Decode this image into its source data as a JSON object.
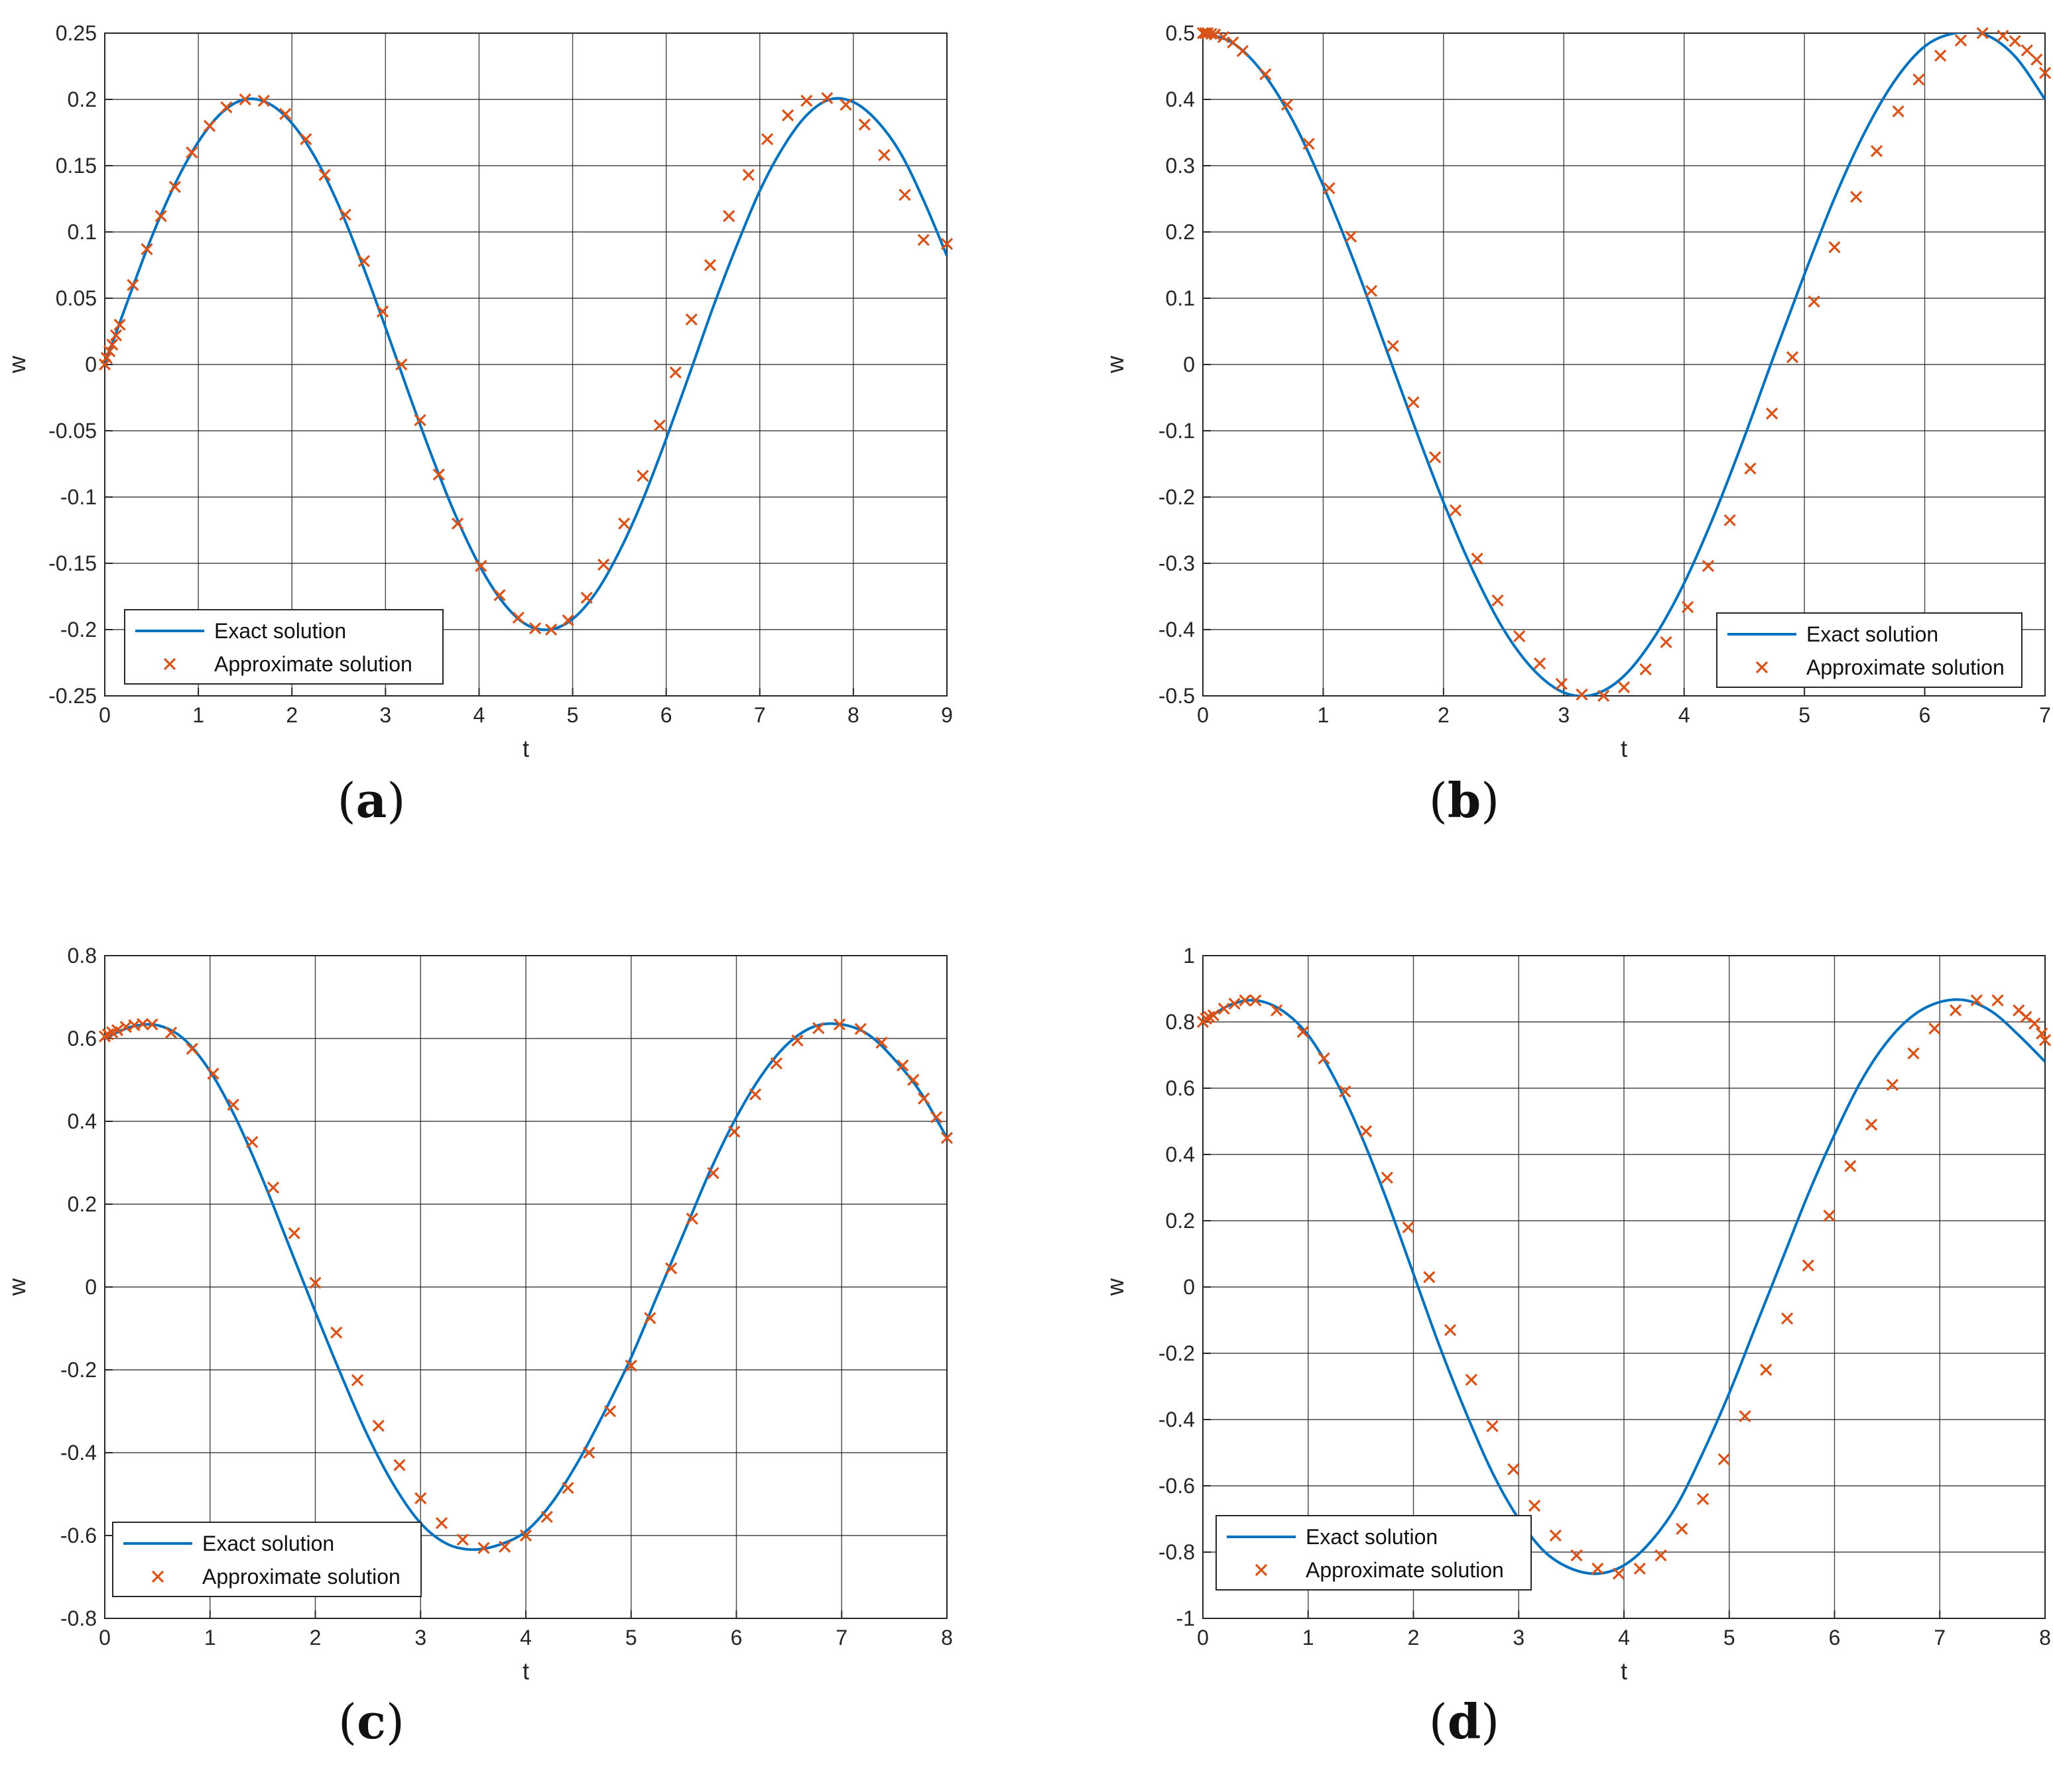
{
  "colors": {
    "exact": "#0072BD",
    "approx": "#D95319",
    "grid": "#262626",
    "axis": "#262626"
  },
  "chart_data": [
    {
      "id": "a",
      "type": "line",
      "caption_letter": "a",
      "xlabel": "t",
      "ylabel": "w",
      "xlim": [
        0,
        9
      ],
      "ylim": [
        -0.25,
        0.25
      ],
      "xticks": [
        0,
        1,
        2,
        3,
        4,
        5,
        6,
        7,
        8,
        9
      ],
      "yticks": [
        -0.25,
        -0.2,
        -0.15,
        -0.1,
        -0.05,
        0,
        0.05,
        0.1,
        0.15,
        0.2,
        0.25
      ],
      "xtick_labels": [
        "0",
        "1",
        "2",
        "3",
        "4",
        "5",
        "6",
        "7",
        "8",
        "9"
      ],
      "ytick_labels": [
        "-0.25",
        "-0.2",
        "-0.15",
        "-0.1",
        "-0.05",
        "0",
        "0.05",
        "0.1",
        "0.15",
        "0.2",
        "0.25"
      ],
      "grid": true,
      "legend": {
        "position": "bottom-left",
        "entries": [
          "Exact solution",
          "Approximate solution"
        ]
      },
      "series": [
        {
          "name": "Exact solution",
          "style": "line",
          "x": [
            0,
            0.25,
            0.5,
            0.75,
            1,
            1.25,
            1.5,
            1.75,
            2,
            2.25,
            2.5,
            2.75,
            3,
            3.25,
            3.5,
            3.75,
            4,
            4.25,
            4.5,
            4.75,
            5,
            5.25,
            5.5,
            5.75,
            6,
            6.25,
            6.5,
            6.75,
            7,
            7.25,
            7.5,
            7.75,
            8,
            8.25,
            8.5,
            8.75,
            9
          ],
          "y": [
            0,
            0.049,
            0.096,
            0.136,
            0.168,
            0.19,
            0.2,
            0.197,
            0.182,
            0.156,
            0.12,
            0.076,
            0.028,
            -0.022,
            -0.07,
            -0.114,
            -0.151,
            -0.179,
            -0.196,
            -0.2,
            -0.192,
            -0.172,
            -0.141,
            -0.102,
            -0.056,
            -0.007,
            0.043,
            0.089,
            0.131,
            0.164,
            0.188,
            0.2,
            0.198,
            0.184,
            0.16,
            0.124,
            0.082
          ]
        },
        {
          "name": "Approximate solution",
          "style": "marker",
          "x": [
            0,
            0.02,
            0.05,
            0.08,
            0.12,
            0.16,
            0.3,
            0.45,
            0.6,
            0.75,
            0.93,
            1.12,
            1.3,
            1.5,
            1.7,
            1.93,
            2.15,
            2.35,
            2.57,
            2.77,
            2.97,
            3.17,
            3.37,
            3.57,
            3.77,
            4.02,
            4.22,
            4.42,
            4.6,
            4.77,
            4.95,
            5.15,
            5.33,
            5.55,
            5.75,
            5.93,
            6.1,
            6.27,
            6.47,
            6.67,
            6.88,
            7.08,
            7.3,
            7.5,
            7.72,
            7.92,
            8.12,
            8.33,
            8.55,
            8.75,
            9
          ],
          "y": [
            0,
            0.005,
            0.01,
            0.015,
            0.022,
            0.03,
            0.06,
            0.087,
            0.112,
            0.134,
            0.16,
            0.18,
            0.194,
            0.2,
            0.199,
            0.189,
            0.17,
            0.143,
            0.113,
            0.078,
            0.04,
            0,
            -0.042,
            -0.083,
            -0.12,
            -0.152,
            -0.174,
            -0.191,
            -0.199,
            -0.2,
            -0.193,
            -0.176,
            -0.151,
            -0.12,
            -0.084,
            -0.046,
            -0.006,
            0.034,
            0.075,
            0.112,
            0.143,
            0.17,
            0.188,
            0.199,
            0.201,
            0.196,
            0.181,
            0.158,
            0.128,
            0.094,
            0.091
          ]
        }
      ]
    },
    {
      "id": "b",
      "type": "line",
      "caption_letter": "b",
      "xlabel": "t",
      "ylabel": "w",
      "xlim": [
        0,
        7
      ],
      "ylim": [
        -0.5,
        0.5
      ],
      "xticks": [
        0,
        1,
        2,
        3,
        4,
        5,
        6,
        7
      ],
      "yticks": [
        -0.5,
        -0.4,
        -0.3,
        -0.2,
        -0.1,
        0,
        0.1,
        0.2,
        0.3,
        0.4,
        0.5
      ],
      "xtick_labels": [
        "0",
        "1",
        "2",
        "3",
        "4",
        "5",
        "6",
        "7"
      ],
      "ytick_labels": [
        "-0.5",
        "-0.4",
        "-0.3",
        "-0.2",
        "-0.1",
        "0",
        "0.1",
        "0.2",
        "0.3",
        "0.4",
        "0.5"
      ],
      "grid": true,
      "legend": {
        "position": "bottom-right",
        "entries": [
          "Exact solution",
          "Approximate solution"
        ]
      },
      "series": [
        {
          "name": "Exact solution",
          "style": "line",
          "x": [
            0,
            0.25,
            0.5,
            0.75,
            1,
            1.25,
            1.5,
            1.75,
            2,
            2.25,
            2.5,
            2.75,
            3,
            3.25,
            3.5,
            3.75,
            4,
            4.25,
            4.5,
            4.75,
            5,
            5.25,
            5.5,
            5.75,
            6,
            6.25,
            6.5,
            6.75,
            7
          ],
          "y": [
            0.5,
            0.485,
            0.44,
            0.367,
            0.27,
            0.158,
            0.035,
            -0.089,
            -0.208,
            -0.313,
            -0.4,
            -0.461,
            -0.495,
            -0.498,
            -0.47,
            -0.412,
            -0.33,
            -0.227,
            -0.11,
            0.015,
            0.136,
            0.251,
            0.35,
            0.428,
            0.48,
            0.5,
            0.498,
            0.465,
            0.4
          ]
        },
        {
          "name": "Approximate solution",
          "style": "marker",
          "x": [
            0,
            0.02,
            0.04,
            0.07,
            0.1,
            0.17,
            0.25,
            0.33,
            0.52,
            0.7,
            0.88,
            1.05,
            1.23,
            1.4,
            1.58,
            1.75,
            1.93,
            2.1,
            2.28,
            2.45,
            2.63,
            2.8,
            2.98,
            3.15,
            3.33,
            3.5,
            3.68,
            3.85,
            4.03,
            4.2,
            4.38,
            4.55,
            4.73,
            4.9,
            5.08,
            5.25,
            5.43,
            5.6,
            5.78,
            5.95,
            6.13,
            6.3,
            6.48,
            6.65,
            6.75,
            6.85,
            6.93,
            7
          ],
          "y": [
            0.5,
            0.5,
            0.5,
            0.499,
            0.498,
            0.494,
            0.486,
            0.473,
            0.438,
            0.392,
            0.333,
            0.266,
            0.193,
            0.111,
            0.028,
            -0.057,
            -0.14,
            -0.22,
            -0.293,
            -0.356,
            -0.41,
            -0.451,
            -0.482,
            -0.498,
            -0.5,
            -0.487,
            -0.46,
            -0.419,
            -0.366,
            -0.304,
            -0.235,
            -0.157,
            -0.074,
            0.011,
            0.095,
            0.177,
            0.253,
            0.322,
            0.382,
            0.43,
            0.466,
            0.489,
            0.5,
            0.496,
            0.488,
            0.474,
            0.46,
            0.44
          ]
        }
      ]
    },
    {
      "id": "c",
      "type": "line",
      "caption_letter": "c",
      "xlabel": "t",
      "ylabel": "w",
      "xlim": [
        0,
        8
      ],
      "ylim": [
        -0.8,
        0.8
      ],
      "xticks": [
        0,
        1,
        2,
        3,
        4,
        5,
        6,
        7,
        8
      ],
      "yticks": [
        -0.8,
        -0.6,
        -0.4,
        -0.2,
        0,
        0.2,
        0.4,
        0.6,
        0.8
      ],
      "xtick_labels": [
        "0",
        "1",
        "2",
        "3",
        "4",
        "5",
        "6",
        "7",
        "8"
      ],
      "ytick_labels": [
        "-0.8",
        "-0.6",
        "-0.4",
        "-0.2",
        "0",
        "0.2",
        "0.4",
        "0.6",
        "0.8"
      ],
      "grid": true,
      "legend": {
        "position": "bottom-left",
        "entries": [
          "Exact solution",
          "Approximate solution"
        ]
      },
      "series": [
        {
          "name": "Exact solution",
          "style": "line",
          "x": [
            0,
            0.25,
            0.5,
            0.75,
            1,
            1.25,
            1.5,
            1.75,
            2,
            2.25,
            2.5,
            2.75,
            3,
            3.25,
            3.5,
            3.75,
            4,
            4.25,
            4.5,
            4.75,
            5,
            5.25,
            5.5,
            5.75,
            6,
            6.25,
            6.5,
            6.75,
            7,
            7.25,
            7.5,
            7.75,
            8
          ],
          "y": [
            0.6,
            0.628,
            0.632,
            0.599,
            0.521,
            0.405,
            0.26,
            0.1,
            -0.06,
            -0.215,
            -0.36,
            -0.48,
            -0.57,
            -0.62,
            -0.634,
            -0.622,
            -0.59,
            -0.52,
            -0.42,
            -0.3,
            -0.17,
            -0.02,
            0.13,
            0.28,
            0.41,
            0.515,
            0.59,
            0.63,
            0.634,
            0.61,
            0.55,
            0.47,
            0.36
          ]
        },
        {
          "name": "Approximate solution",
          "style": "marker",
          "x": [
            0,
            0.03,
            0.07,
            0.12,
            0.2,
            0.28,
            0.36,
            0.45,
            0.63,
            0.83,
            1.03,
            1.22,
            1.4,
            1.6,
            1.8,
            2,
            2.2,
            2.4,
            2.6,
            2.8,
            3,
            3.2,
            3.4,
            3.6,
            3.8,
            4,
            4.2,
            4.4,
            4.6,
            4.8,
            5,
            5.18,
            5.38,
            5.58,
            5.78,
            5.98,
            6.18,
            6.38,
            6.58,
            6.78,
            6.98,
            7.18,
            7.38,
            7.58,
            7.68,
            7.78,
            7.9,
            8
          ],
          "y": [
            0.605,
            0.61,
            0.615,
            0.62,
            0.628,
            0.632,
            0.635,
            0.634,
            0.614,
            0.575,
            0.515,
            0.44,
            0.35,
            0.24,
            0.13,
            0.01,
            -0.11,
            -0.225,
            -0.335,
            -0.43,
            -0.51,
            -0.57,
            -0.61,
            -0.63,
            -0.627,
            -0.6,
            -0.555,
            -0.485,
            -0.4,
            -0.3,
            -0.19,
            -0.075,
            0.045,
            0.165,
            0.275,
            0.375,
            0.465,
            0.54,
            0.595,
            0.625,
            0.634,
            0.623,
            0.59,
            0.535,
            0.5,
            0.455,
            0.41,
            0.36
          ]
        }
      ]
    },
    {
      "id": "d",
      "type": "line",
      "caption_letter": "d",
      "xlabel": "t",
      "ylabel": "w",
      "xlim": [
        0,
        8
      ],
      "ylim": [
        -1,
        1
      ],
      "xticks": [
        0,
        1,
        2,
        3,
        4,
        5,
        6,
        7,
        8
      ],
      "yticks": [
        -1,
        -0.8,
        -0.6,
        -0.4,
        -0.2,
        0,
        0.2,
        0.4,
        0.6,
        0.8,
        1
      ],
      "xtick_labels": [
        "0",
        "1",
        "2",
        "3",
        "4",
        "5",
        "6",
        "7",
        "8"
      ],
      "ytick_labels": [
        "-1",
        "-0.8",
        "-0.6",
        "-0.4",
        "-0.2",
        "0",
        "0.2",
        "0.4",
        "0.6",
        "0.8",
        "1"
      ],
      "grid": true,
      "legend": {
        "position": "bottom-left",
        "entries": [
          "Exact solution",
          "Approximate solution"
        ]
      },
      "series": [
        {
          "name": "Exact solution",
          "style": "line",
          "x": [
            0,
            0.25,
            0.5,
            0.75,
            1,
            1.25,
            1.5,
            1.75,
            2,
            2.25,
            2.5,
            2.75,
            3,
            3.25,
            3.5,
            3.75,
            4,
            4.25,
            4.5,
            4.75,
            5,
            5.25,
            5.5,
            5.75,
            6,
            6.25,
            6.5,
            6.75,
            7,
            7.25,
            7.5,
            7.75,
            8
          ],
          "y": [
            0.8,
            0.85,
            0.865,
            0.835,
            0.76,
            0.63,
            0.46,
            0.26,
            0.04,
            -0.18,
            -0.38,
            -0.56,
            -0.7,
            -0.8,
            -0.85,
            -0.865,
            -0.84,
            -0.77,
            -0.66,
            -0.5,
            -0.32,
            -0.12,
            0.08,
            0.28,
            0.46,
            0.62,
            0.74,
            0.82,
            0.86,
            0.865,
            0.83,
            0.76,
            0.68
          ]
        },
        {
          "name": "Approximate solution",
          "style": "marker",
          "x": [
            0,
            0.03,
            0.06,
            0.1,
            0.2,
            0.3,
            0.4,
            0.5,
            0.7,
            0.95,
            1.15,
            1.35,
            1.55,
            1.75,
            1.95,
            2.15,
            2.35,
            2.55,
            2.75,
            2.95,
            3.15,
            3.35,
            3.55,
            3.75,
            3.95,
            4.15,
            4.35,
            4.55,
            4.75,
            4.95,
            5.15,
            5.35,
            5.55,
            5.75,
            5.95,
            6.15,
            6.35,
            6.55,
            6.75,
            6.95,
            7.15,
            7.35,
            7.55,
            7.75,
            7.82,
            7.9,
            7.97,
            8
          ],
          "y": [
            0.8,
            0.81,
            0.815,
            0.82,
            0.84,
            0.855,
            0.865,
            0.865,
            0.835,
            0.77,
            0.69,
            0.59,
            0.47,
            0.33,
            0.18,
            0.03,
            -0.13,
            -0.28,
            -0.42,
            -0.55,
            -0.66,
            -0.75,
            -0.81,
            -0.85,
            -0.865,
            -0.85,
            -0.81,
            -0.73,
            -0.64,
            -0.52,
            -0.39,
            -0.25,
            -0.095,
            0.065,
            0.215,
            0.365,
            0.49,
            0.61,
            0.705,
            0.78,
            0.835,
            0.865,
            0.865,
            0.835,
            0.815,
            0.795,
            0.765,
            0.745
          ]
        }
      ]
    }
  ]
}
